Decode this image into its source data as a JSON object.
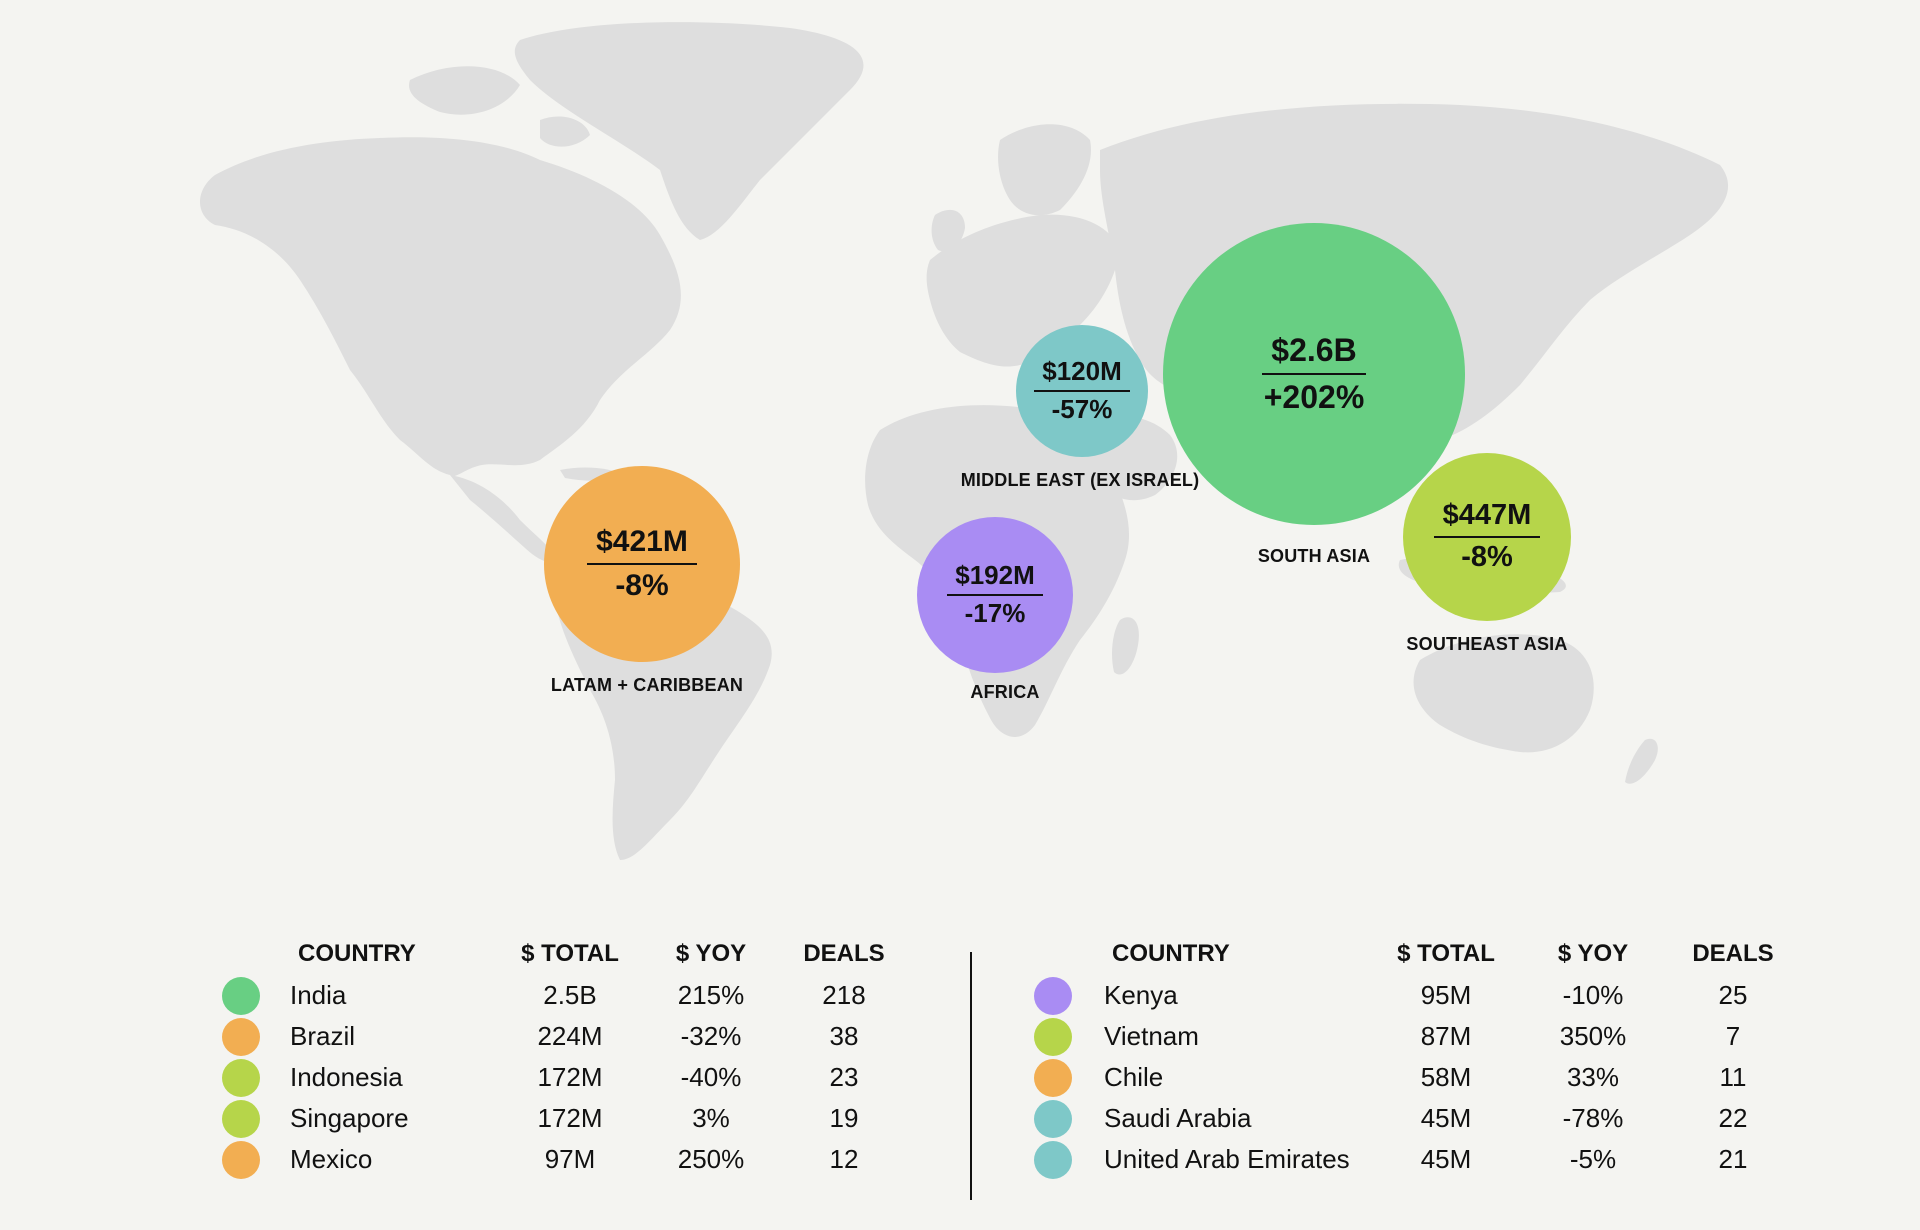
{
  "colors": {
    "green": "#68cf83",
    "orange": "#f2ae52",
    "lime": "#b6d54a",
    "teal": "#7ec8c8",
    "purple": "#a98cf3",
    "land": "#dedede",
    "background": "#f4f4f1"
  },
  "chart_data": {
    "type": "bubble-map",
    "regions": [
      {
        "name": "SOUTH ASIA",
        "total": "$2.6B",
        "yoy": "+202%",
        "value_usd_m": 2600,
        "yoy_pct": 202,
        "color": "#68cf83"
      },
      {
        "name": "MIDDLE EAST (EX ISRAEL)",
        "total": "$120M",
        "yoy": "-57%",
        "value_usd_m": 120,
        "yoy_pct": -57,
        "color": "#7ec8c8"
      },
      {
        "name": "SOUTHEAST ASIA",
        "total": "$447M",
        "yoy": "-8%",
        "value_usd_m": 447,
        "yoy_pct": -8,
        "color": "#b6d54a"
      },
      {
        "name": "LATAM + CARIBBEAN",
        "total": "$421M",
        "yoy": "-8%",
        "value_usd_m": 421,
        "yoy_pct": -8,
        "color": "#f2ae52"
      },
      {
        "name": "AFRICA",
        "total": "$192M",
        "yoy": "-17%",
        "value_usd_m": 192,
        "yoy_pct": -17,
        "color": "#a98cf3"
      }
    ]
  },
  "table": {
    "headers": {
      "country": "COUNTRY",
      "total": "$ TOTAL",
      "yoy": "$ YOY",
      "deals": "DEALS"
    },
    "left": [
      {
        "country": "India",
        "total": "2.5B",
        "yoy": "215%",
        "deals": "218",
        "color": "#68cf83"
      },
      {
        "country": "Brazil",
        "total": "224M",
        "yoy": "-32%",
        "deals": "38",
        "color": "#f2ae52"
      },
      {
        "country": "Indonesia",
        "total": "172M",
        "yoy": "-40%",
        "deals": "23",
        "color": "#b6d54a"
      },
      {
        "country": "Singapore",
        "total": "172M",
        "yoy": "3%",
        "deals": "19",
        "color": "#b6d54a"
      },
      {
        "country": "Mexico",
        "total": "97M",
        "yoy": "250%",
        "deals": "12",
        "color": "#f2ae52"
      }
    ],
    "right": [
      {
        "country": "Kenya",
        "total": "95M",
        "yoy": "-10%",
        "deals": "25",
        "color": "#a98cf3"
      },
      {
        "country": "Vietnam",
        "total": "87M",
        "yoy": "350%",
        "deals": "7",
        "color": "#b6d54a"
      },
      {
        "country": "Chile",
        "total": "58M",
        "yoy": "33%",
        "deals": "11",
        "color": "#f2ae52"
      },
      {
        "country": "Saudi Arabia",
        "total": "45M",
        "yoy": "-78%",
        "deals": "22",
        "color": "#7ec8c8"
      },
      {
        "country": "United Arab Emirates",
        "total": "45M",
        "yoy": "-5%",
        "deals": "21",
        "color": "#7ec8c8"
      }
    ]
  }
}
